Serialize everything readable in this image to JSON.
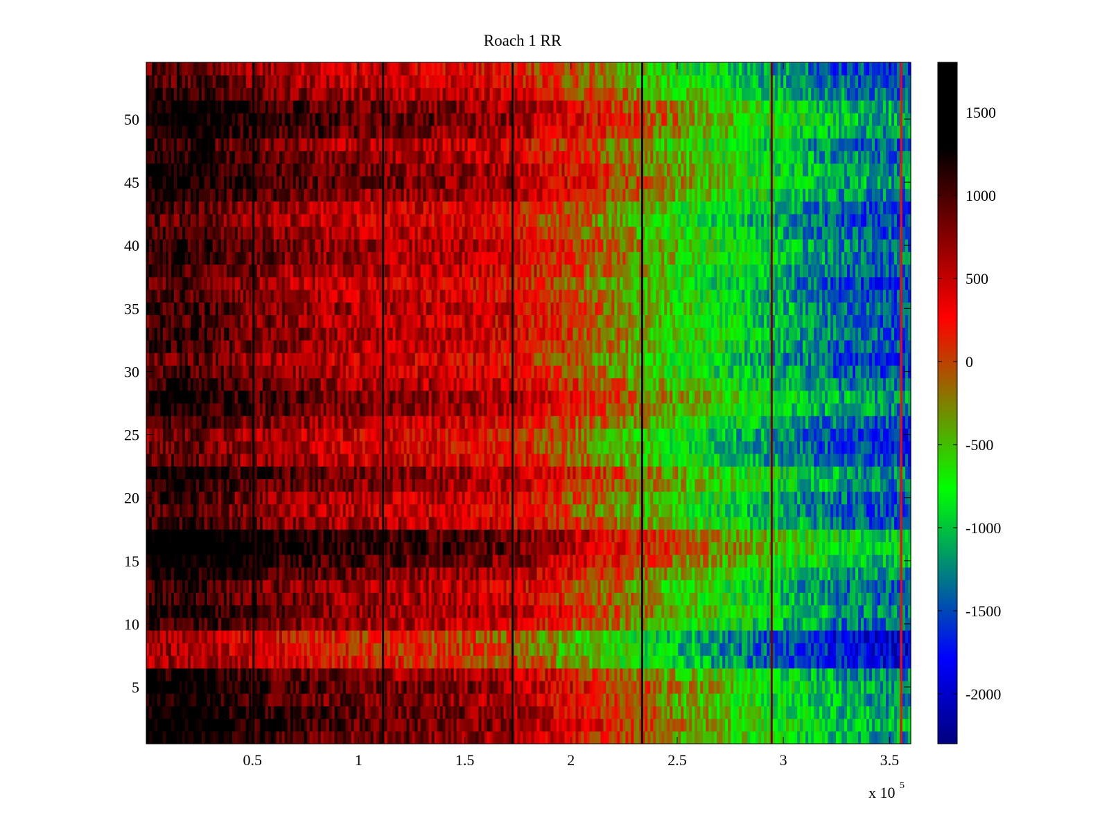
{
  "chart_data": {
    "type": "heatmap",
    "title": "Roach 1 RR",
    "xlabel": "",
    "ylabel": "",
    "x_exponent_label": "x 10",
    "x_exponent": "5",
    "xlim": [
      0,
      360000
    ],
    "ylim": [
      0.5,
      54.5
    ],
    "x_ticks": [
      {
        "value": 50000,
        "label": "0.5"
      },
      {
        "value": 100000,
        "label": "1"
      },
      {
        "value": 150000,
        "label": "1.5"
      },
      {
        "value": 200000,
        "label": "2"
      },
      {
        "value": 250000,
        "label": "2.5"
      },
      {
        "value": 300000,
        "label": "3"
      },
      {
        "value": 350000,
        "label": "3.5"
      }
    ],
    "y_ticks": [
      {
        "value": 5,
        "label": "5"
      },
      {
        "value": 10,
        "label": "10"
      },
      {
        "value": 15,
        "label": "15"
      },
      {
        "value": 20,
        "label": "20"
      },
      {
        "value": 25,
        "label": "25"
      },
      {
        "value": 30,
        "label": "30"
      },
      {
        "value": 35,
        "label": "35"
      },
      {
        "value": 40,
        "label": "40"
      },
      {
        "value": 45,
        "label": "45"
      },
      {
        "value": 50,
        "label": "50"
      }
    ],
    "colorbar": {
      "colormap": "jet",
      "range": [
        -2300,
        1800
      ],
      "ticks": [
        {
          "value": 1500,
          "label": "1500"
        },
        {
          "value": 1000,
          "label": "1000"
        },
        {
          "value": 500,
          "label": "500"
        },
        {
          "value": 0,
          "label": "0"
        },
        {
          "value": -500,
          "label": "-500"
        },
        {
          "value": -1000,
          "label": "-1000"
        },
        {
          "value": -1500,
          "label": "-1500"
        },
        {
          "value": -2000,
          "label": "-2000"
        }
      ]
    },
    "rows": 54,
    "column_profile": {
      "x": [
        0,
        20000,
        50000,
        100000,
        150000,
        175000,
        200000,
        250000,
        300000,
        330000,
        360000
      ],
      "value": [
        900,
        950,
        700,
        450,
        350,
        200,
        -100,
        -700,
        -1200,
        -1500,
        -1600
      ]
    },
    "row_offsets": [
      400,
      500,
      450,
      350,
      450,
      300,
      -250,
      -300,
      -350,
      150,
      300,
      200,
      150,
      350,
      550,
      700,
      650,
      150,
      50,
      100,
      300,
      350,
      0,
      -50,
      -50,
      100,
      300,
      350,
      200,
      50,
      0,
      100,
      150,
      100,
      150,
      50,
      0,
      100,
      200,
      200,
      100,
      0,
      50,
      300,
      400,
      350,
      250,
      150,
      400,
      500,
      400,
      200,
      50,
      0
    ],
    "stripes": [
      {
        "x": 50500,
        "value": 1700
      },
      {
        "x": 111500,
        "value": 1700
      },
      {
        "x": 172500,
        "value": 1650
      },
      {
        "x": 233500,
        "value": 1200
      },
      {
        "x": 294500,
        "value": 800
      },
      {
        "x": 355500,
        "value": 200
      }
    ]
  }
}
